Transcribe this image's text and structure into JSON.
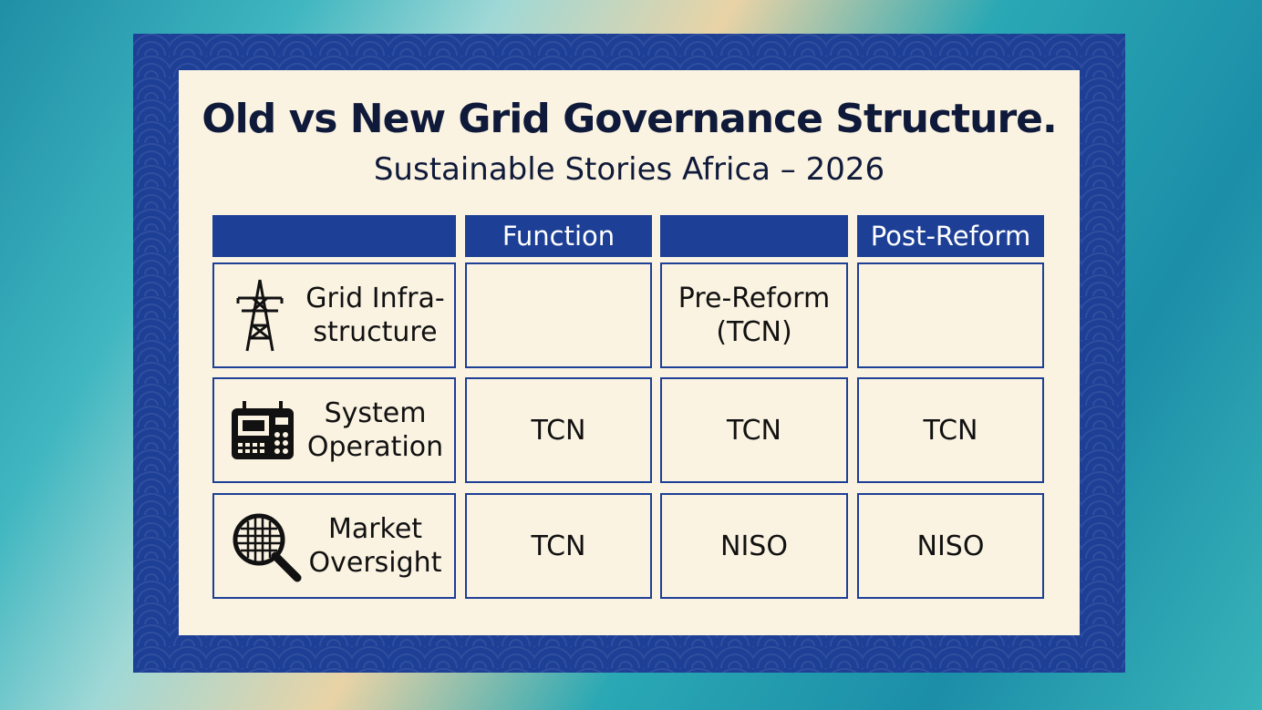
{
  "header": {
    "title": "Old vs New Grid Governance Structure.",
    "subtitle": "Sustainable Stories Africa – 2026"
  },
  "table": {
    "columns": [
      null,
      "Function",
      null,
      "Post-Reform"
    ],
    "rows": [
      [
        [
          "Grid Infra-",
          "structure"
        ],
        null,
        [
          "Pre-Reform",
          "(TCN)"
        ],
        null
      ],
      [
        [
          "System",
          "Operation"
        ],
        [
          "TCN"
        ],
        [
          "TCN"
        ],
        [
          "TCN"
        ]
      ],
      [
        [
          "Market",
          "Oversight"
        ],
        [
          "TCN"
        ],
        [
          "NISO"
        ],
        [
          "NISO"
        ]
      ]
    ]
  }
}
